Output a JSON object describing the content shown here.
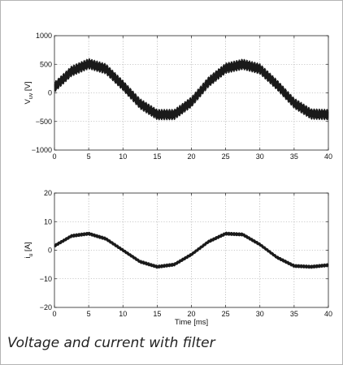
{
  "caption": "Voltage and current with filter",
  "chart_data": [
    {
      "type": "line",
      "ylabel": "V",
      "ylabel_sub": "uv",
      "ylabel_unit": "[V]",
      "xlabel": "",
      "xlim": [
        0,
        40
      ],
      "ylim": [
        -1000,
        1000
      ],
      "x_ticks": [
        0,
        5,
        10,
        15,
        20,
        25,
        30,
        35,
        40
      ],
      "y_ticks": [
        -1000,
        -500,
        0,
        500,
        1000
      ],
      "y_tick_labels": [
        "−1000",
        "−500",
        "0",
        "500",
        "1000"
      ],
      "grid": true,
      "line_color": "#1a1a1a",
      "series": [
        {
          "x": [
            0,
            2.5,
            5,
            7.5,
            10,
            12.5,
            15,
            17.5,
            20,
            22.5,
            25,
            27.5,
            30,
            32.5,
            35,
            37.5,
            40
          ],
          "values": [
            100,
            380,
            510,
            420,
            130,
            -190,
            -380,
            -380,
            -160,
            190,
            430,
            500,
            420,
            140,
            -180,
            -370,
            -380
          ],
          "ripple_amplitude": 95
        }
      ]
    },
    {
      "type": "line",
      "ylabel": "i",
      "ylabel_sub": "u",
      "ylabel_unit": "[A]",
      "xlabel": "Time [ms]",
      "xlim": [
        0,
        40
      ],
      "ylim": [
        -20,
        20
      ],
      "x_ticks": [
        0,
        5,
        10,
        15,
        20,
        25,
        30,
        35,
        40
      ],
      "y_ticks": [
        -20,
        -10,
        0,
        10,
        20
      ],
      "y_tick_labels": [
        "−20",
        "−10",
        "0",
        "10",
        "20"
      ],
      "grid": true,
      "line_color": "#1a1a1a",
      "series": [
        {
          "x": [
            0,
            2.5,
            5,
            7.5,
            10,
            12.5,
            15,
            17.5,
            20,
            22.5,
            25,
            27.5,
            30,
            32.5,
            35,
            37.5,
            40
          ],
          "values": [
            1.5,
            5,
            5.8,
            4,
            0,
            -4,
            -5.8,
            -5,
            -1.5,
            3,
            5.8,
            5.5,
            2,
            -2.5,
            -5.5,
            -5.8,
            -5.2
          ],
          "ripple_amplitude": 0.6
        }
      ]
    }
  ]
}
